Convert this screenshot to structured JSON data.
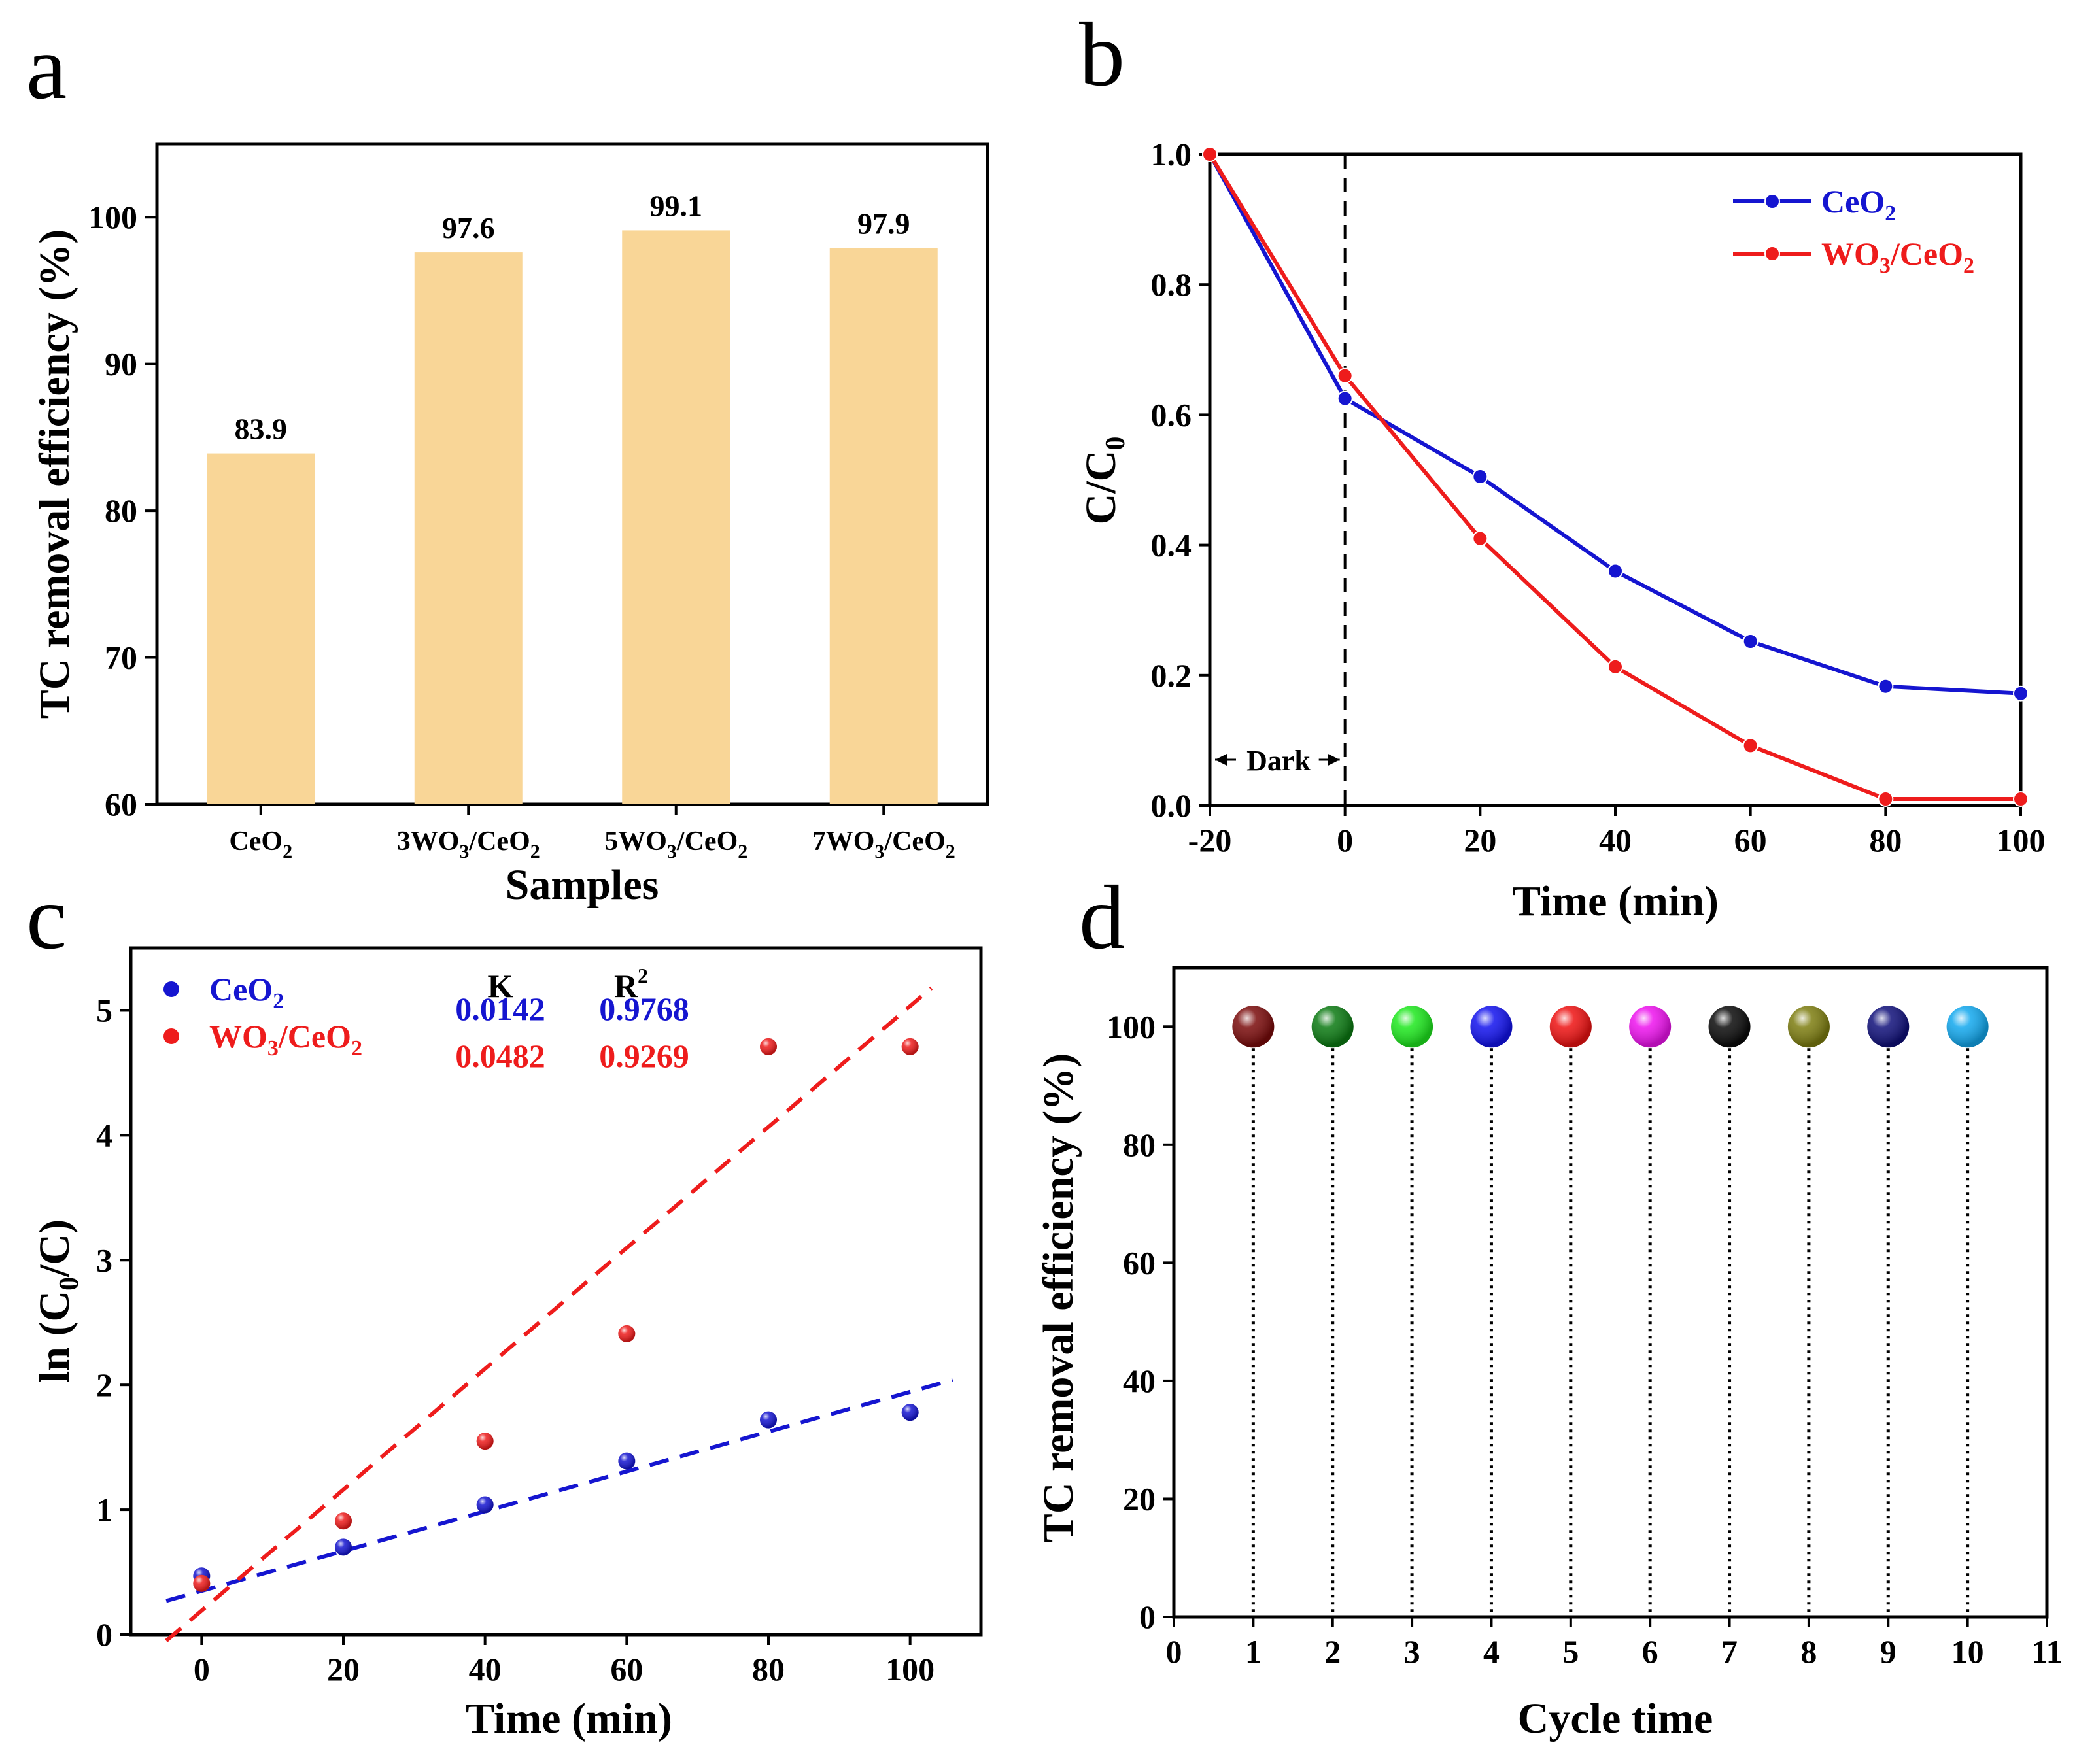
{
  "colors": {
    "bar": "#f9d697",
    "ceo2": "#1515d0",
    "wo3ceo2": "#ee1c1c",
    "axis": "#000000"
  },
  "chart_data": [
    {
      "panel": "a",
      "type": "bar",
      "xlabel": "Samples",
      "ylabel": "TC removal efficiency (%)",
      "ylim": [
        60,
        105
      ],
      "yticks": [
        60,
        70,
        80,
        90,
        100
      ],
      "categories": [
        "CeO2",
        "3WO3/CeO2",
        "5WO3/CeO2",
        "7WO3/CeO2"
      ],
      "category_labels": [
        {
          "pre": "",
          "main": "CeO",
          "sub1": "2",
          "mid": "",
          "sub2": ""
        },
        {
          "pre": "3",
          "main": "WO",
          "sub1": "3",
          "mid": "/CeO",
          "sub2": "2"
        },
        {
          "pre": "5",
          "main": "WO",
          "sub1": "3",
          "mid": "/CeO",
          "sub2": "2"
        },
        {
          "pre": "7",
          "main": "WO",
          "sub1": "3",
          "mid": "/CeO",
          "sub2": "2"
        }
      ],
      "values": [
        83.9,
        97.6,
        99.1,
        97.9
      ],
      "value_labels": [
        "83.9",
        "97.6",
        "99.1",
        "97.9"
      ]
    },
    {
      "panel": "b",
      "type": "line",
      "xlabel": "Time (min)",
      "ylabel_main": "C/C",
      "ylabel_sub": "0",
      "xlim": [
        -20,
        100
      ],
      "ylim": [
        0,
        1.0
      ],
      "xticks": [
        -20,
        0,
        20,
        40,
        60,
        80,
        100
      ],
      "yticks": [
        "0.0",
        "0.2",
        "0.4",
        "0.6",
        "0.8",
        "1.0"
      ],
      "annotation": "Dark",
      "x": [
        -20,
        0,
        20,
        40,
        60,
        80,
        100
      ],
      "series": [
        {
          "name": "CeO2",
          "label_main": "CeO",
          "label_sub": "2",
          "values": [
            1.0,
            0.625,
            0.505,
            0.36,
            0.252,
            0.183,
            0.172
          ]
        },
        {
          "name": "WO3/CeO2",
          "label_main": "WO",
          "label_sub": "3",
          "label_mid": "/CeO",
          "label_sub2": "2",
          "values": [
            1.0,
            0.66,
            0.41,
            0.213,
            0.092,
            0.01,
            0.01
          ]
        }
      ]
    },
    {
      "panel": "c",
      "type": "scatter",
      "xlabel": "Time (min)",
      "ylabel_pre": "ln (C",
      "ylabel_sub": "0",
      "ylabel_post": "/C)",
      "xlim": [
        -10,
        110
      ],
      "ylim": [
        0,
        5.5
      ],
      "xticks": [
        0,
        20,
        40,
        60,
        80,
        100
      ],
      "yticks": [
        0,
        1,
        2,
        3,
        4,
        5
      ],
      "stats_headers": {
        "k": "K",
        "r2_main": "R",
        "r2_sup": "2"
      },
      "series": [
        {
          "name": "CeO2",
          "label_main": "CeO",
          "label_sub": "2",
          "x": [
            0,
            20,
            40,
            60,
            80,
            100
          ],
          "values": [
            0.47,
            0.7,
            1.04,
            1.39,
            1.72,
            1.78
          ],
          "k": "0.0142",
          "r2": "0.9768",
          "fit_start": [
            -5,
            0.27
          ],
          "fit_end": [
            106,
            2.04
          ]
        },
        {
          "name": "WO3/CeO2",
          "label_main": "WO",
          "label_sub": "3",
          "label_mid": "/CeO",
          "label_sub2": "2",
          "x": [
            0,
            20,
            40,
            60,
            80,
            100
          ],
          "values": [
            0.41,
            0.91,
            1.55,
            2.41,
            4.71,
            4.71
          ],
          "k": "0.0482",
          "r2": "0.9269",
          "fit_start": [
            -5,
            -0.05
          ],
          "fit_end": [
            103,
            5.18
          ]
        }
      ]
    },
    {
      "panel": "d",
      "type": "scatter",
      "xlabel": "Cycle time",
      "ylabel": "TC removal efficiency (%)",
      "xlim": [
        0,
        11
      ],
      "ylim": [
        0,
        110
      ],
      "xticks": [
        0,
        1,
        2,
        3,
        4,
        5,
        6,
        7,
        8,
        9,
        10,
        11
      ],
      "yticks": [
        0,
        20,
        40,
        60,
        80,
        100
      ],
      "x": [
        1,
        2,
        3,
        4,
        5,
        6,
        7,
        8,
        9,
        10
      ],
      "values": [
        100,
        100,
        100,
        100,
        100,
        100,
        100,
        100,
        100,
        100
      ],
      "point_colors": [
        "#7a0b0b",
        "#0b7a12",
        "#1ee81e",
        "#1212ee",
        "#ee1212",
        "#ee12ee",
        "#0a0a0a",
        "#7d7d10",
        "#10107a",
        "#12a8ee"
      ]
    }
  ],
  "panel_letters": [
    "a",
    "b",
    "c",
    "d"
  ]
}
